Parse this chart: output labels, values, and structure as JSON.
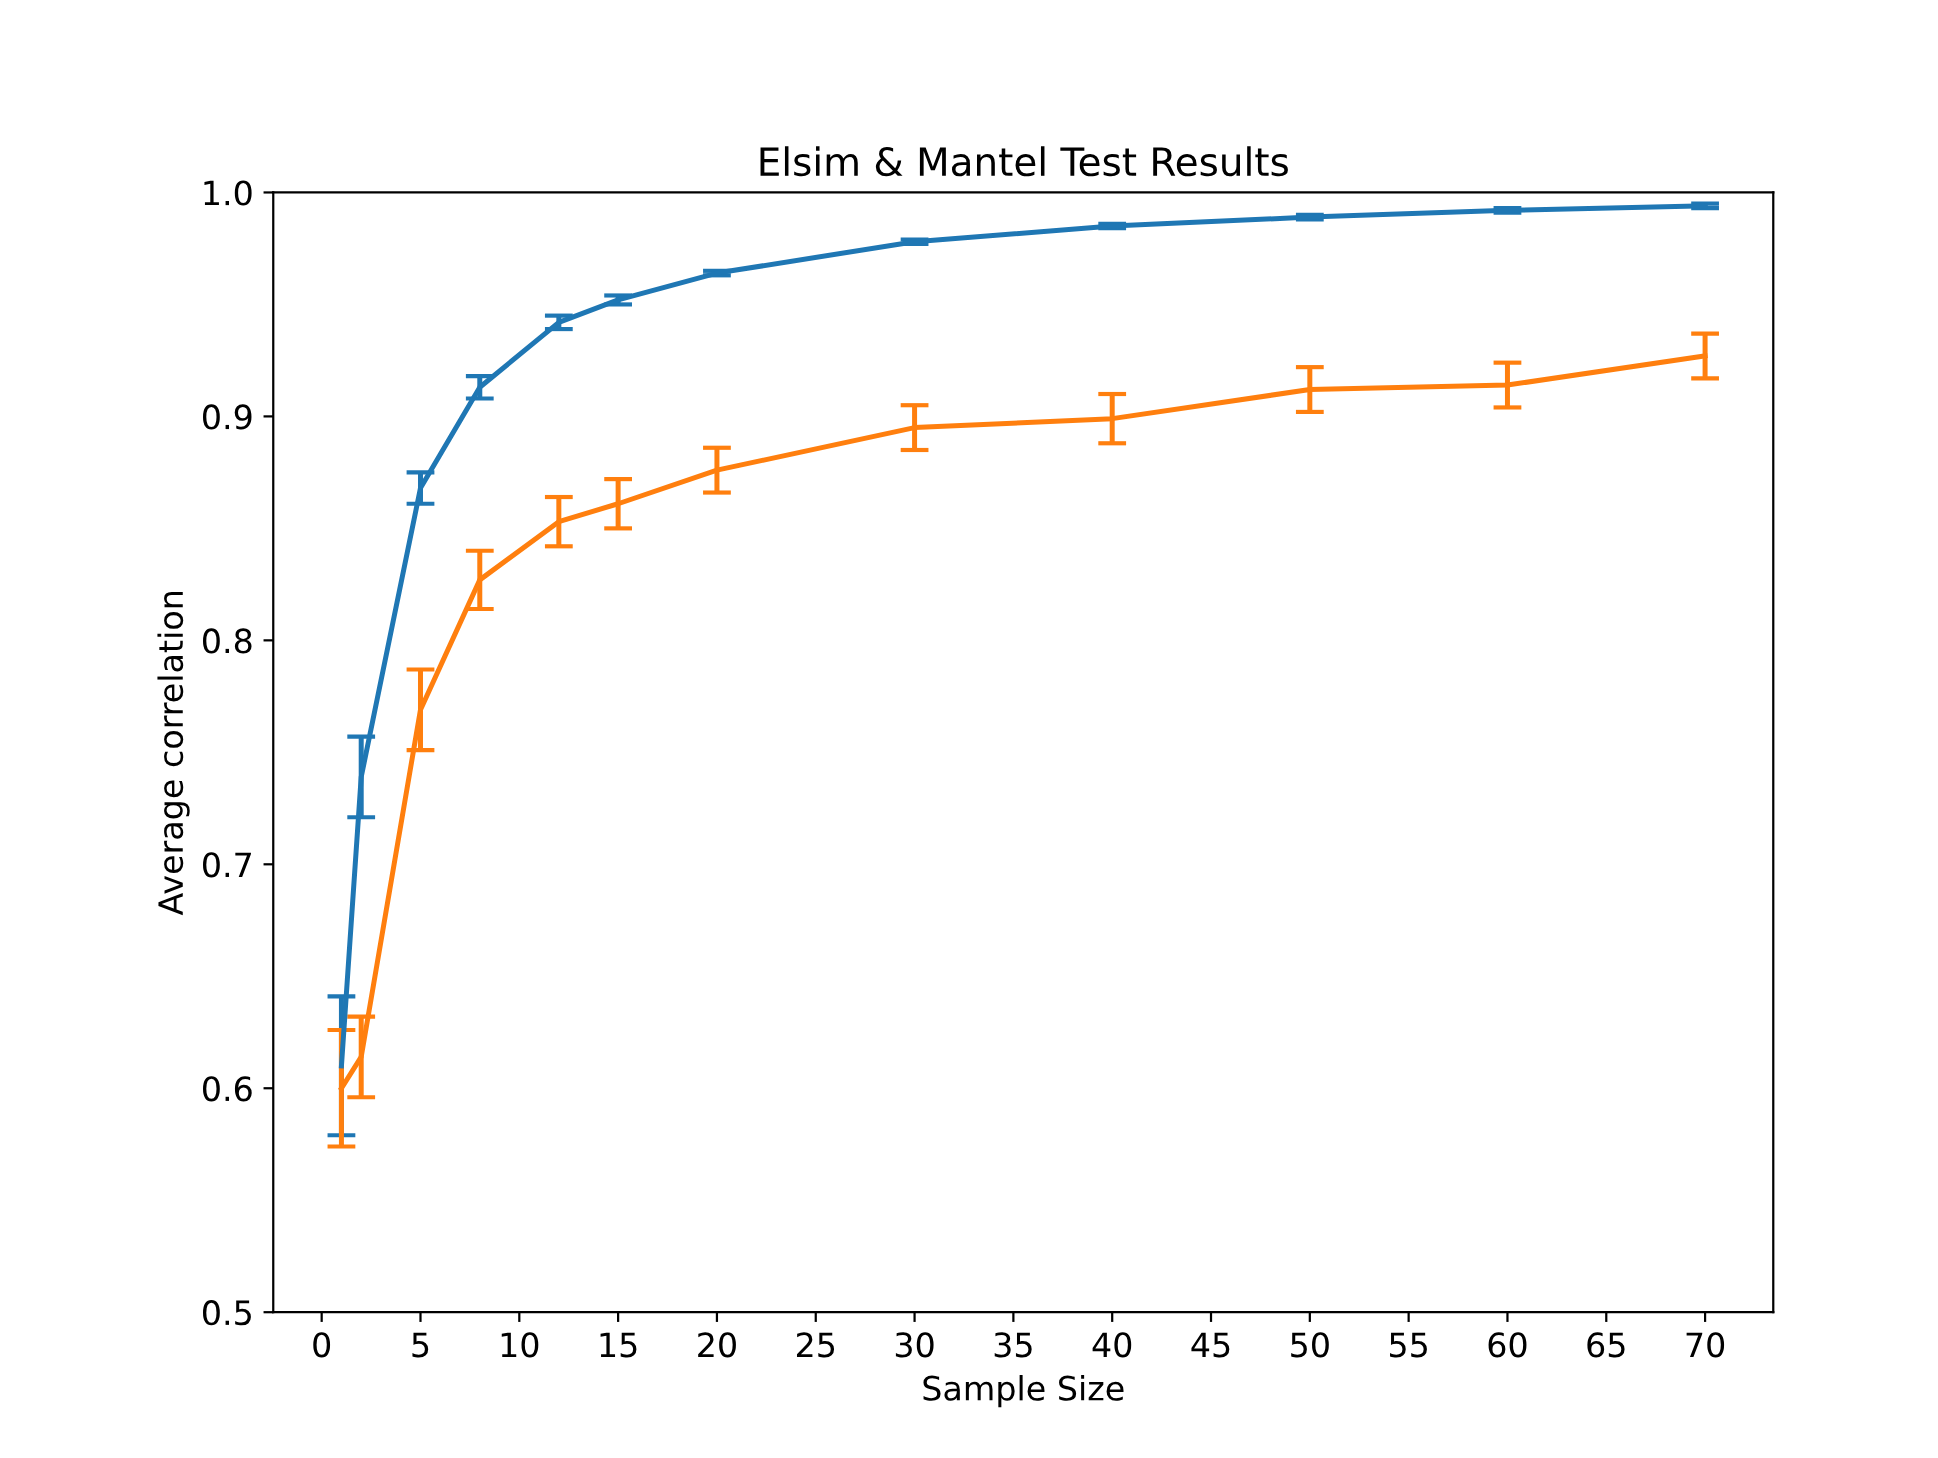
{
  "chart_data": {
    "type": "line",
    "title": "Elsim & Mantel Test Results",
    "xlabel": "Sample Size",
    "ylabel": "Average correlation",
    "x": [
      1,
      2,
      5,
      8,
      12,
      15,
      20,
      30,
      40,
      50,
      60,
      70
    ],
    "series": [
      {
        "color": "#1f77b4",
        "values": [
          0.61,
          0.739,
          0.868,
          0.913,
          0.942,
          0.952,
          0.964,
          0.978,
          0.985,
          0.989,
          0.992,
          0.994
        ],
        "errors": [
          0.031,
          0.018,
          0.007,
          0.005,
          0.003,
          0.002,
          0.001,
          0.001,
          0.001,
          0.001,
          0.001,
          0.001
        ]
      },
      {
        "color": "#ff7f0e",
        "values": [
          0.6,
          0.614,
          0.769,
          0.827,
          0.853,
          0.861,
          0.876,
          0.895,
          0.899,
          0.912,
          0.914,
          0.927
        ],
        "errors": [
          0.026,
          0.018,
          0.018,
          0.013,
          0.011,
          0.011,
          0.01,
          0.01,
          0.011,
          0.01,
          0.01,
          0.01
        ]
      }
    ],
    "xlim": [
      -2.45,
      73.45
    ],
    "xticks": [
      0,
      5,
      10,
      15,
      20,
      25,
      30,
      35,
      40,
      45,
      50,
      55,
      60,
      65,
      70
    ],
    "ylim": [
      0.5,
      1.0
    ],
    "yticks": [
      {
        "value": 0.5,
        "label": "0.5"
      },
      {
        "value": 0.6,
        "label": "0.6"
      },
      {
        "value": 0.7,
        "label": "0.7"
      },
      {
        "value": 0.8,
        "label": "0.8"
      },
      {
        "value": 0.9,
        "label": "0.9"
      },
      {
        "value": 1.0,
        "label": "1.0"
      }
    ],
    "grid": false,
    "legend": false,
    "marker": "none",
    "line_style": "solid"
  }
}
